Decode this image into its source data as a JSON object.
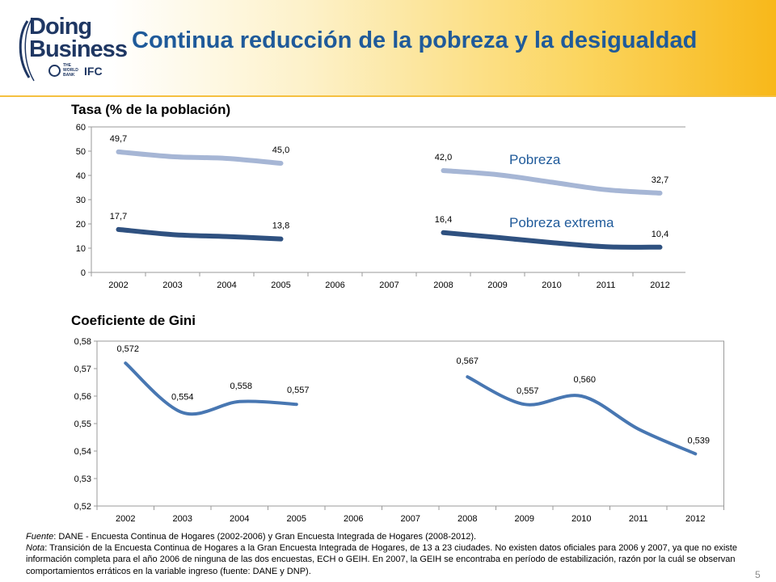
{
  "header": {
    "logo_line1": "Doing",
    "logo_line2": "Business",
    "logo_worldbank": "THE WORLD BANK",
    "logo_ifc": "IFC",
    "title": "Continua reducción de la pobreza y la desigualdad"
  },
  "colors": {
    "pobreza": "#a6b6d5",
    "extrema": "#2f5180",
    "gini": "#4877b2",
    "title": "#1f5a9a"
  },
  "chart_data": [
    {
      "type": "line",
      "title": "Tasa (% de la población)",
      "categories": [
        "2002",
        "2003",
        "2004",
        "2005",
        "2006",
        "2007",
        "2008",
        "2009",
        "2010",
        "2011",
        "2012"
      ],
      "ylim": [
        0,
        60
      ],
      "yticks": [
        "0",
        "10",
        "20",
        "30",
        "40",
        "50",
        "60"
      ],
      "grid": false,
      "series": [
        {
          "name": "Pobreza",
          "values": [
            49.7,
            47.7,
            47.0,
            45.0,
            null,
            null,
            42.0,
            40.3,
            37.2,
            34.1,
            32.7
          ],
          "labels": [
            "49,7",
            "",
            "",
            "45,0",
            "",
            "",
            "42,0",
            "",
            "",
            "",
            "32,7"
          ]
        },
        {
          "name": "Pobreza extrema",
          "values": [
            17.7,
            15.6,
            14.8,
            13.8,
            null,
            null,
            16.4,
            14.4,
            12.3,
            10.6,
            10.4
          ],
          "labels": [
            "17,7",
            "",
            "",
            "13,8",
            "",
            "",
            "16,4",
            "",
            "",
            "",
            "10,4"
          ]
        }
      ]
    },
    {
      "type": "line",
      "title": "Coeficiente de Gini",
      "categories": [
        "2002",
        "2003",
        "2004",
        "2005",
        "2006",
        "2007",
        "2008",
        "2009",
        "2010",
        "2011",
        "2012"
      ],
      "ylim": [
        0.52,
        0.58
      ],
      "yticks": [
        "0,52",
        "0,53",
        "0,54",
        "0,55",
        "0,56",
        "0,57",
        "0,58"
      ],
      "grid": false,
      "series": [
        {
          "values": [
            0.572,
            0.554,
            0.558,
            0.557,
            null,
            null,
            0.567,
            0.557,
            0.56,
            0.548,
            0.539
          ],
          "labels": [
            "0,572",
            "0,554",
            "0,558",
            "0,557",
            "",
            "",
            "0,567",
            "0,557",
            "0,560",
            "",
            "0,539"
          ]
        }
      ]
    }
  ],
  "footnote": {
    "source_label": "Fuente",
    "source_text": ": DANE - Encuesta Continua de Hogares (2002-2006)  y Gran Encuesta Integrada de Hogares (2008-2012).",
    "note_label": "Nota",
    "note_text": ": Transición de la Encuesta Continua de Hogares a la Gran Encuesta Integrada de Hogares, de 13 a 23 ciudades. No existen datos  oficiales para 2006 y 2007,  ya que no existe información completa para el año 2006 de ninguna de las dos encuestas, ECH o GEIH.  En 2007, la GEIH se encontraba en período de estabilización, razón por la cuál se observan comportamientos erráticos en la variable ingreso (fuente: DANE y DNP)."
  },
  "page_number": "5"
}
